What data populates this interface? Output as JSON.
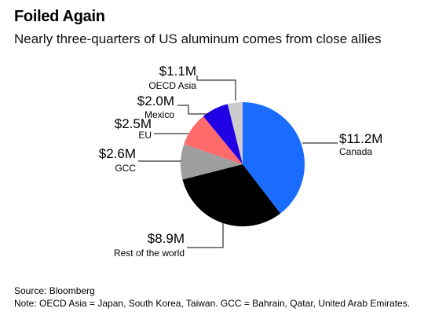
{
  "header": {
    "title": "Foiled Again",
    "subtitle": "Nearly three-quarters of US aluminum comes from close allies"
  },
  "footer": {
    "source": "Source: Bloomberg",
    "note": "Note: OECD Asia = Japan, South Korea, Taiwan. GCC = Bahrain, Qatar, United Arab Emirates."
  },
  "chart_data": {
    "type": "pie",
    "title": "Foiled Again",
    "subtitle": "Nearly three-quarters of US aluminum comes from close allies",
    "unit": "$M",
    "slices": [
      {
        "label": "Canada",
        "value": 11.2,
        "value_label": "$11.2M",
        "color": "#1a6cff"
      },
      {
        "label": "Rest of the world",
        "value": 8.9,
        "value_label": "$8.9M",
        "color": "#000000"
      },
      {
        "label": "GCC",
        "value": 2.6,
        "value_label": "$2.6M",
        "color": "#9e9e9e"
      },
      {
        "label": "EU",
        "value": 2.5,
        "value_label": "$2.5M",
        "color": "#ff6b6b"
      },
      {
        "label": "Mexico",
        "value": 2.0,
        "value_label": "$2.0M",
        "color": "#2200e6"
      },
      {
        "label": "OECD Asia",
        "value": 1.1,
        "value_label": "$1.1M",
        "color": "#cccccc"
      }
    ],
    "start_angle": "12 o'clock",
    "direction": "clockwise",
    "legend": "none",
    "labels": "outside with leader lines"
  }
}
